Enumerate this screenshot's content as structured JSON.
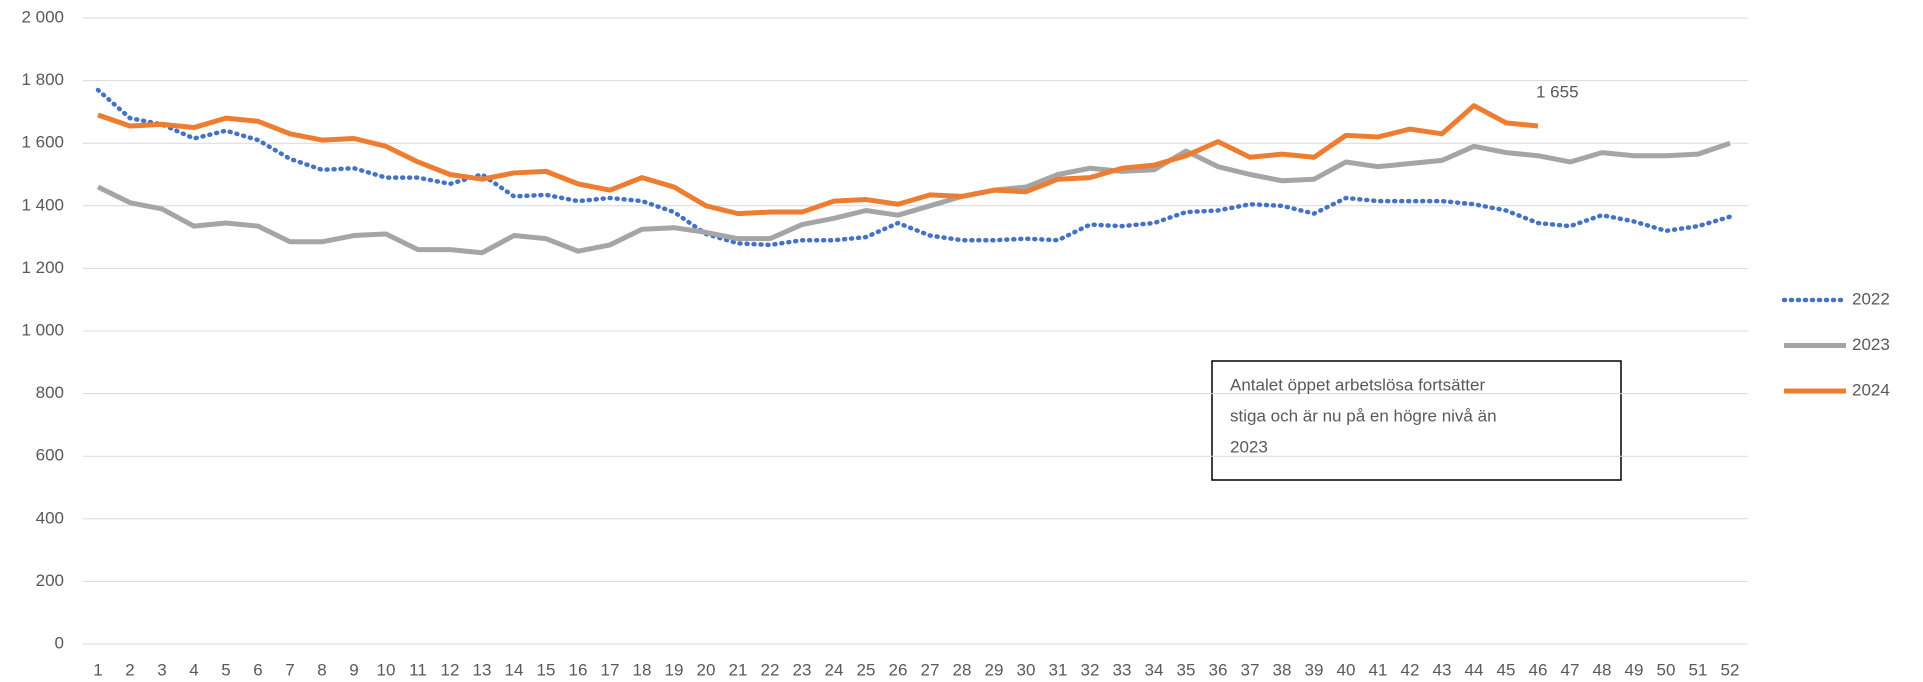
{
  "chart_data": {
    "type": "line",
    "categories": [
      "1",
      "2",
      "3",
      "4",
      "5",
      "6",
      "7",
      "8",
      "9",
      "10",
      "11",
      "12",
      "13",
      "14",
      "15",
      "16",
      "17",
      "18",
      "19",
      "20",
      "21",
      "22",
      "23",
      "24",
      "25",
      "26",
      "27",
      "28",
      "29",
      "30",
      "31",
      "32",
      "33",
      "34",
      "35",
      "36",
      "37",
      "38",
      "39",
      "40",
      "41",
      "42",
      "43",
      "44",
      "45",
      "46",
      "47",
      "48",
      "49",
      "50",
      "51",
      "52"
    ],
    "series": [
      {
        "name": "2022",
        "color": "#4472c4",
        "dash": "dotted",
        "values": [
          1770,
          1680,
          1660,
          1615,
          1640,
          1610,
          1550,
          1515,
          1520,
          1490,
          1490,
          1470,
          1500,
          1430,
          1435,
          1415,
          1425,
          1415,
          1380,
          1310,
          1280,
          1275,
          1290,
          1290,
          1300,
          1345,
          1305,
          1290,
          1290,
          1295,
          1290,
          1340,
          1335,
          1345,
          1380,
          1385,
          1405,
          1400,
          1375,
          1425,
          1415,
          1415,
          1415,
          1405,
          1385,
          1345,
          1335,
          1370,
          1350,
          1320,
          1335,
          1365
        ]
      },
      {
        "name": "2023",
        "color": "#a5a5a5",
        "values": [
          1460,
          1410,
          1390,
          1335,
          1345,
          1335,
          1285,
          1285,
          1305,
          1310,
          1260,
          1260,
          1250,
          1305,
          1295,
          1255,
          1275,
          1325,
          1330,
          1315,
          1295,
          1295,
          1340,
          1360,
          1385,
          1370,
          1400,
          1430,
          1450,
          1460,
          1500,
          1520,
          1510,
          1515,
          1575,
          1525,
          1500,
          1480,
          1485,
          1540,
          1525,
          1535,
          1545,
          1590,
          1570,
          1560,
          1540,
          1570,
          1560,
          1560,
          1565,
          1600
        ]
      },
      {
        "name": "2024",
        "color": "#ed7d31",
        "values": [
          1690,
          1655,
          1660,
          1650,
          1680,
          1670,
          1630,
          1610,
          1615,
          1590,
          1540,
          1500,
          1485,
          1505,
          1510,
          1470,
          1450,
          1490,
          1460,
          1400,
          1375,
          1380,
          1380,
          1415,
          1420,
          1405,
          1435,
          1430,
          1450,
          1445,
          1485,
          1490,
          1520,
          1530,
          1560,
          1605,
          1555,
          1565,
          1555,
          1625,
          1620,
          1645,
          1630,
          1720,
          1665,
          1655,
          null,
          null,
          null,
          null,
          null,
          null
        ],
        "value_labels": [
          null,
          null,
          null,
          null,
          null,
          null,
          null,
          null,
          null,
          null,
          null,
          null,
          null,
          null,
          null,
          null,
          null,
          null,
          null,
          null,
          null,
          null,
          null,
          null,
          null,
          null,
          null,
          null,
          null,
          null,
          null,
          null,
          null,
          null,
          null,
          null,
          null,
          null,
          null,
          null,
          null,
          null,
          null,
          null,
          null,
          "1 655",
          null,
          null,
          null,
          null,
          null,
          null
        ]
      }
    ],
    "ylim": [
      0,
      2000
    ],
    "yticks": [
      0,
      200,
      400,
      600,
      800,
      {
        "value": 1000,
        "label": "1 000"
      },
      {
        "value": 1200,
        "label": "1 200"
      },
      {
        "value": 1400,
        "label": "1 400"
      },
      {
        "value": 1600,
        "label": "1 600"
      },
      {
        "value": 1800,
        "label": "1 800"
      },
      {
        "value": 2000,
        "label": "2 000"
      }
    ],
    "grid": true,
    "legend": "right",
    "annotation": {
      "lines": [
        "Antalet öppet arbetslösa fortsätter",
        "stiga och är nu på en högre nivå än",
        "2023"
      ]
    }
  }
}
